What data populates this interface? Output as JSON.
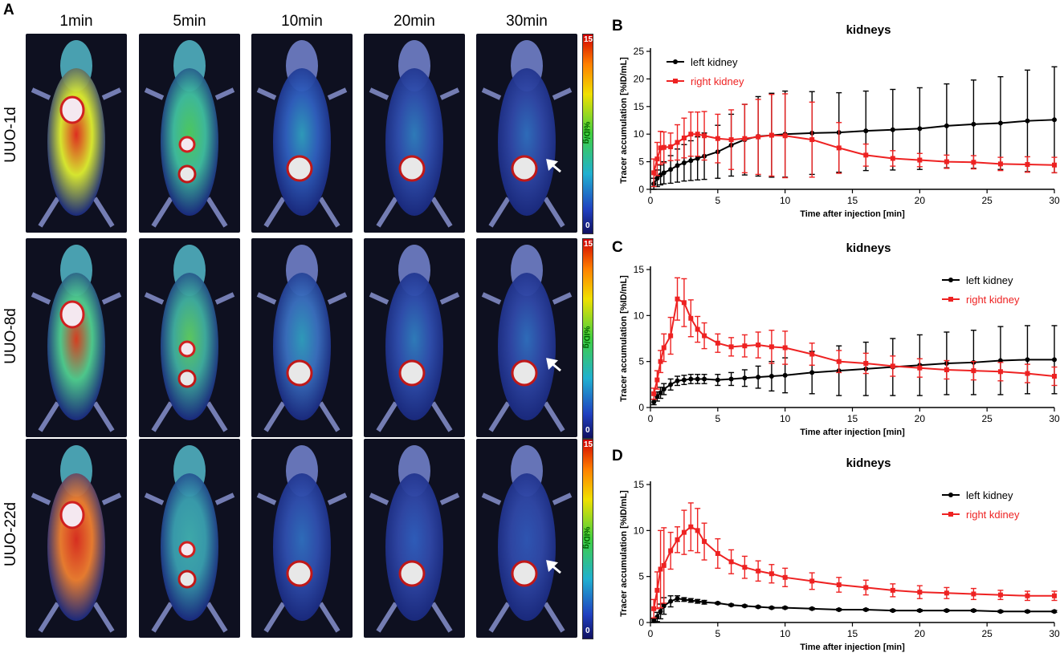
{
  "panel_a": {
    "letter": "A",
    "time_labels": [
      "1min",
      "5min",
      "10min",
      "20min",
      "30min"
    ],
    "row_labels": [
      "UUO-1d",
      "UUO-8d",
      "UUO-22d"
    ],
    "colorbar": {
      "max_label": "15",
      "min_label": "0",
      "unit": "%ID/g"
    }
  },
  "colors": {
    "left": "#000000",
    "right": "#ee2222"
  },
  "chart_data": [
    {
      "panel": "B",
      "type": "line",
      "title": "kidneys",
      "xlabel": "Time after injection [min]",
      "ylabel": "Tracer accumulation [%ID/mL]",
      "xlim": [
        0,
        30
      ],
      "ylim": [
        0,
        25
      ],
      "xticks": [
        0,
        5,
        10,
        15,
        20,
        25,
        30
      ],
      "yticks": [
        0,
        5,
        10,
        15,
        20,
        25
      ],
      "legend_position": "top-left",
      "series": [
        {
          "name": "left kidney",
          "marker": "circle",
          "x": [
            0.25,
            0.5,
            0.75,
            1,
            1.5,
            2,
            2.5,
            3,
            3.5,
            4,
            5,
            6,
            7,
            8,
            9,
            10,
            12,
            14,
            16,
            18,
            20,
            22,
            24,
            26,
            28,
            30
          ],
          "y": [
            1.0,
            2.0,
            2.6,
            3.0,
            3.6,
            4.3,
            4.8,
            5.2,
            5.6,
            6.0,
            6.8,
            8.0,
            9.0,
            9.6,
            9.8,
            10.0,
            10.2,
            10.3,
            10.6,
            10.8,
            11.0,
            11.5,
            11.8,
            12.0,
            12.4,
            12.6
          ],
          "err": [
            1.0,
            1.5,
            1.8,
            2.0,
            2.5,
            3.0,
            3.3,
            3.6,
            3.9,
            4.2,
            4.8,
            5.6,
            6.4,
            7.2,
            7.6,
            7.8,
            7.5,
            7.2,
            7.2,
            7.3,
            7.4,
            7.6,
            8.0,
            8.4,
            9.2,
            9.6
          ]
        },
        {
          "name": "right kidney",
          "marker": "square",
          "x": [
            0.25,
            0.5,
            0.75,
            1,
            1.5,
            2,
            2.5,
            3,
            3.5,
            4,
            5,
            6,
            7,
            8,
            9,
            10,
            12,
            14,
            16,
            18,
            20,
            22,
            24,
            26,
            28,
            30
          ],
          "y": [
            3.0,
            5.5,
            7.5,
            7.6,
            7.7,
            8.5,
            9.3,
            10.0,
            10.0,
            9.7,
            9.2,
            9.0,
            9.2,
            9.5,
            9.8,
            9.7,
            9.0,
            7.5,
            6.2,
            5.6,
            5.3,
            5.0,
            4.9,
            4.6,
            4.5,
            4.4
          ],
          "err": [
            2.5,
            3.0,
            3.0,
            2.8,
            2.5,
            3.2,
            3.6,
            4.0,
            4.0,
            4.4,
            4.4,
            5.4,
            6.2,
            6.8,
            7.4,
            7.6,
            6.8,
            4.6,
            2.0,
            1.4,
            1.2,
            1.2,
            1.2,
            1.2,
            1.4,
            1.4
          ]
        }
      ]
    },
    {
      "panel": "C",
      "type": "line",
      "title": "kidneys",
      "xlabel": "Time after injection [min]",
      "ylabel": "Tracer accumulation [%ID/mL]",
      "xlim": [
        0,
        30
      ],
      "ylim": [
        0,
        15
      ],
      "xticks": [
        0,
        5,
        10,
        15,
        20,
        25,
        30
      ],
      "yticks": [
        0,
        5,
        10,
        15
      ],
      "legend_position": "top-right",
      "series": [
        {
          "name": "left kidney",
          "marker": "circle",
          "x": [
            0.25,
            0.5,
            0.75,
            1,
            1.5,
            2,
            2.5,
            3,
            3.5,
            4,
            5,
            6,
            7,
            8,
            9,
            10,
            12,
            14,
            16,
            18,
            20,
            22,
            24,
            26,
            28,
            30
          ],
          "y": [
            0.6,
            1.2,
            1.6,
            2.0,
            2.5,
            2.9,
            3.0,
            3.1,
            3.1,
            3.1,
            3.0,
            3.1,
            3.2,
            3.3,
            3.4,
            3.5,
            3.8,
            4.0,
            4.2,
            4.4,
            4.6,
            4.8,
            4.9,
            5.1,
            5.2,
            5.2
          ],
          "err": [
            0.3,
            0.5,
            0.6,
            0.6,
            0.6,
            0.5,
            0.5,
            0.5,
            0.5,
            0.5,
            0.6,
            0.7,
            0.9,
            1.2,
            1.6,
            1.9,
            2.3,
            2.7,
            2.9,
            3.1,
            3.3,
            3.4,
            3.5,
            3.7,
            3.7,
            3.7
          ]
        },
        {
          "name": "right kidney",
          "marker": "square",
          "x": [
            0.25,
            0.5,
            0.75,
            1,
            1.5,
            2,
            2.5,
            3,
            3.5,
            4,
            5,
            6,
            7,
            8,
            9,
            10,
            12,
            14,
            16,
            18,
            20,
            22,
            24,
            26,
            28,
            30
          ],
          "y": [
            1.5,
            3.0,
            5.0,
            6.5,
            7.8,
            11.8,
            11.4,
            9.7,
            8.5,
            7.8,
            7.0,
            6.6,
            6.7,
            6.8,
            6.6,
            6.5,
            5.8,
            5.0,
            4.8,
            4.5,
            4.3,
            4.1,
            4.0,
            3.9,
            3.7,
            3.4
          ],
          "err": [
            0.6,
            1.0,
            1.2,
            1.5,
            2.0,
            2.3,
            2.6,
            2.0,
            1.4,
            1.4,
            1.0,
            1.0,
            1.2,
            1.4,
            1.8,
            1.8,
            1.2,
            1.2,
            1.1,
            1.1,
            1.0,
            1.0,
            1.0,
            1.0,
            1.0,
            1.0
          ]
        }
      ]
    },
    {
      "panel": "D",
      "type": "line",
      "title": "kidneys",
      "xlabel": "Time after injection [min]",
      "ylabel": "Tracer accumulation [%ID/mL]",
      "xlim": [
        0,
        30
      ],
      "ylim": [
        0,
        15
      ],
      "xticks": [
        0,
        5,
        10,
        15,
        20,
        25,
        30
      ],
      "yticks": [
        0,
        5,
        10,
        15
      ],
      "legend_position": "top-right",
      "series": [
        {
          "name": "left kidney",
          "marker": "circle",
          "x": [
            0.25,
            0.5,
            0.75,
            1,
            1.5,
            2,
            2.5,
            3,
            3.5,
            4,
            5,
            6,
            7,
            8,
            9,
            10,
            12,
            14,
            16,
            18,
            20,
            22,
            24,
            26,
            28,
            30
          ],
          "y": [
            0.2,
            0.6,
            1.2,
            1.8,
            2.3,
            2.6,
            2.5,
            2.4,
            2.3,
            2.2,
            2.1,
            1.9,
            1.8,
            1.7,
            1.6,
            1.6,
            1.5,
            1.4,
            1.4,
            1.3,
            1.3,
            1.3,
            1.3,
            1.2,
            1.2,
            1.2
          ],
          "err": [
            0.2,
            0.5,
            0.8,
            0.9,
            0.6,
            0.3,
            0.2,
            0.2,
            0.2,
            0.2,
            0.1,
            0.1,
            0.1,
            0.1,
            0.1,
            0.1,
            0.1,
            0.1,
            0.1,
            0.1,
            0.1,
            0.1,
            0.1,
            0.1,
            0.1,
            0.1
          ]
        },
        {
          "name": "right kdiney",
          "marker": "square",
          "x": [
            0.25,
            0.5,
            0.75,
            1,
            1.5,
            2,
            2.5,
            3,
            3.5,
            4,
            5,
            6,
            7,
            8,
            9,
            10,
            12,
            14,
            16,
            18,
            20,
            22,
            24,
            26,
            28,
            30
          ],
          "y": [
            1.5,
            3.5,
            5.8,
            6.2,
            7.8,
            9.0,
            9.8,
            10.4,
            10.0,
            8.8,
            7.5,
            6.6,
            6.0,
            5.6,
            5.3,
            4.9,
            4.5,
            4.1,
            3.8,
            3.5,
            3.3,
            3.2,
            3.1,
            3.0,
            2.9,
            2.9
          ],
          "err": [
            1.0,
            2.0,
            4.2,
            4.1,
            2.0,
            1.4,
            2.4,
            2.6,
            2.4,
            2.0,
            1.6,
            1.3,
            1.2,
            1.1,
            1.0,
            1.0,
            0.9,
            0.8,
            0.8,
            0.7,
            0.7,
            0.6,
            0.6,
            0.5,
            0.5,
            0.5
          ]
        }
      ]
    }
  ]
}
